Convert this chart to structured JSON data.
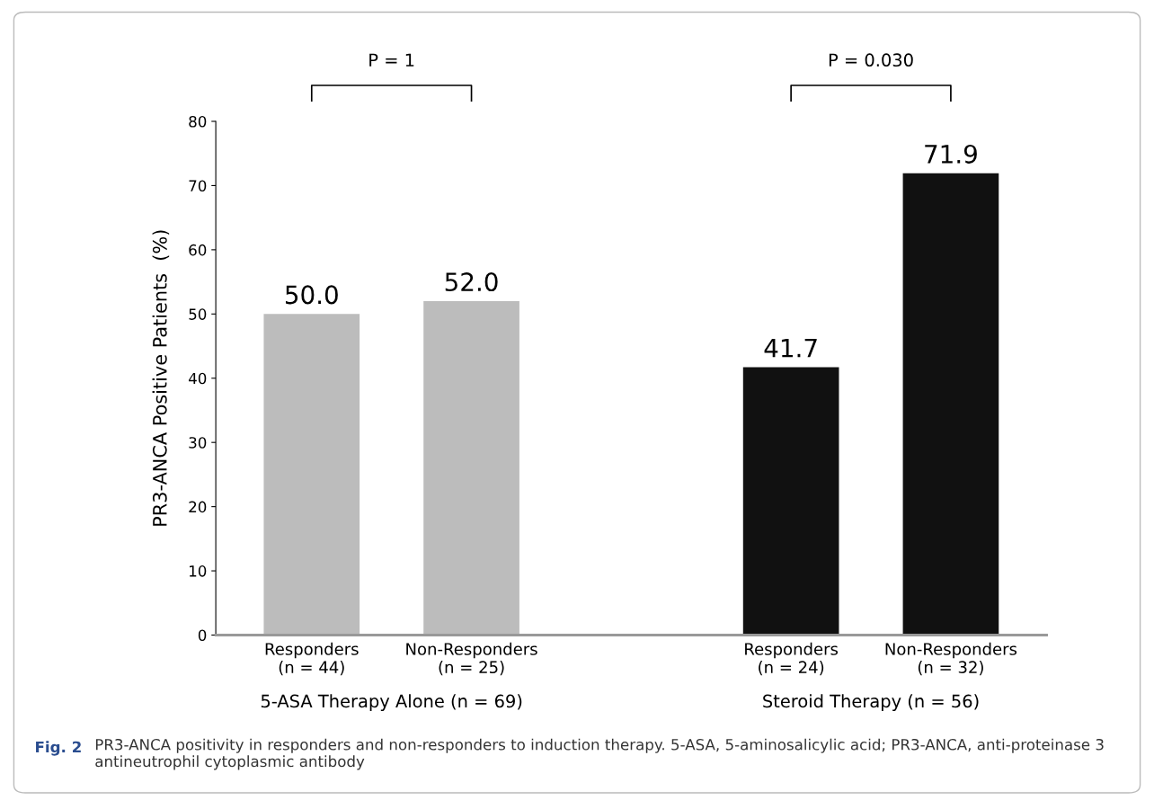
{
  "chart_data": {
    "type": "bar",
    "categories": [
      "Responders\n(n = 44)",
      "Non-Responders\n(n = 25)",
      null,
      "Responders\n(n = 24)",
      "Non-Responders\n(n = 32)"
    ],
    "values": [
      50.0,
      52.0,
      null,
      41.7,
      71.9
    ],
    "value_labels": [
      "50.0",
      "52.0",
      null,
      "41.7",
      "71.9"
    ],
    "colors": [
      "#bcbcbc",
      "#bcbcbc",
      null,
      "#111111",
      "#111111"
    ],
    "ylabel": "PR3-ANCA Positive Patients  (%)",
    "ylim": [
      0,
      80
    ],
    "yticks": [
      0,
      10,
      20,
      30,
      40,
      50,
      60,
      70,
      80
    ],
    "grid": false,
    "legend": false,
    "annotations": [
      "P = 1",
      "P = 0.030",
      "5-ASA Therapy Alone (n = 69)",
      "Steroid Therapy (n = 56)",
      "Fig. 2",
      "PR3-ANCA positivity in responders and non-responders to induction therapy. 5-ASA, 5-aminosalicylic acid; PR3-ANCA, anti-proteinase 3 antineutrophil cytoplasmic antibody"
    ]
  }
}
